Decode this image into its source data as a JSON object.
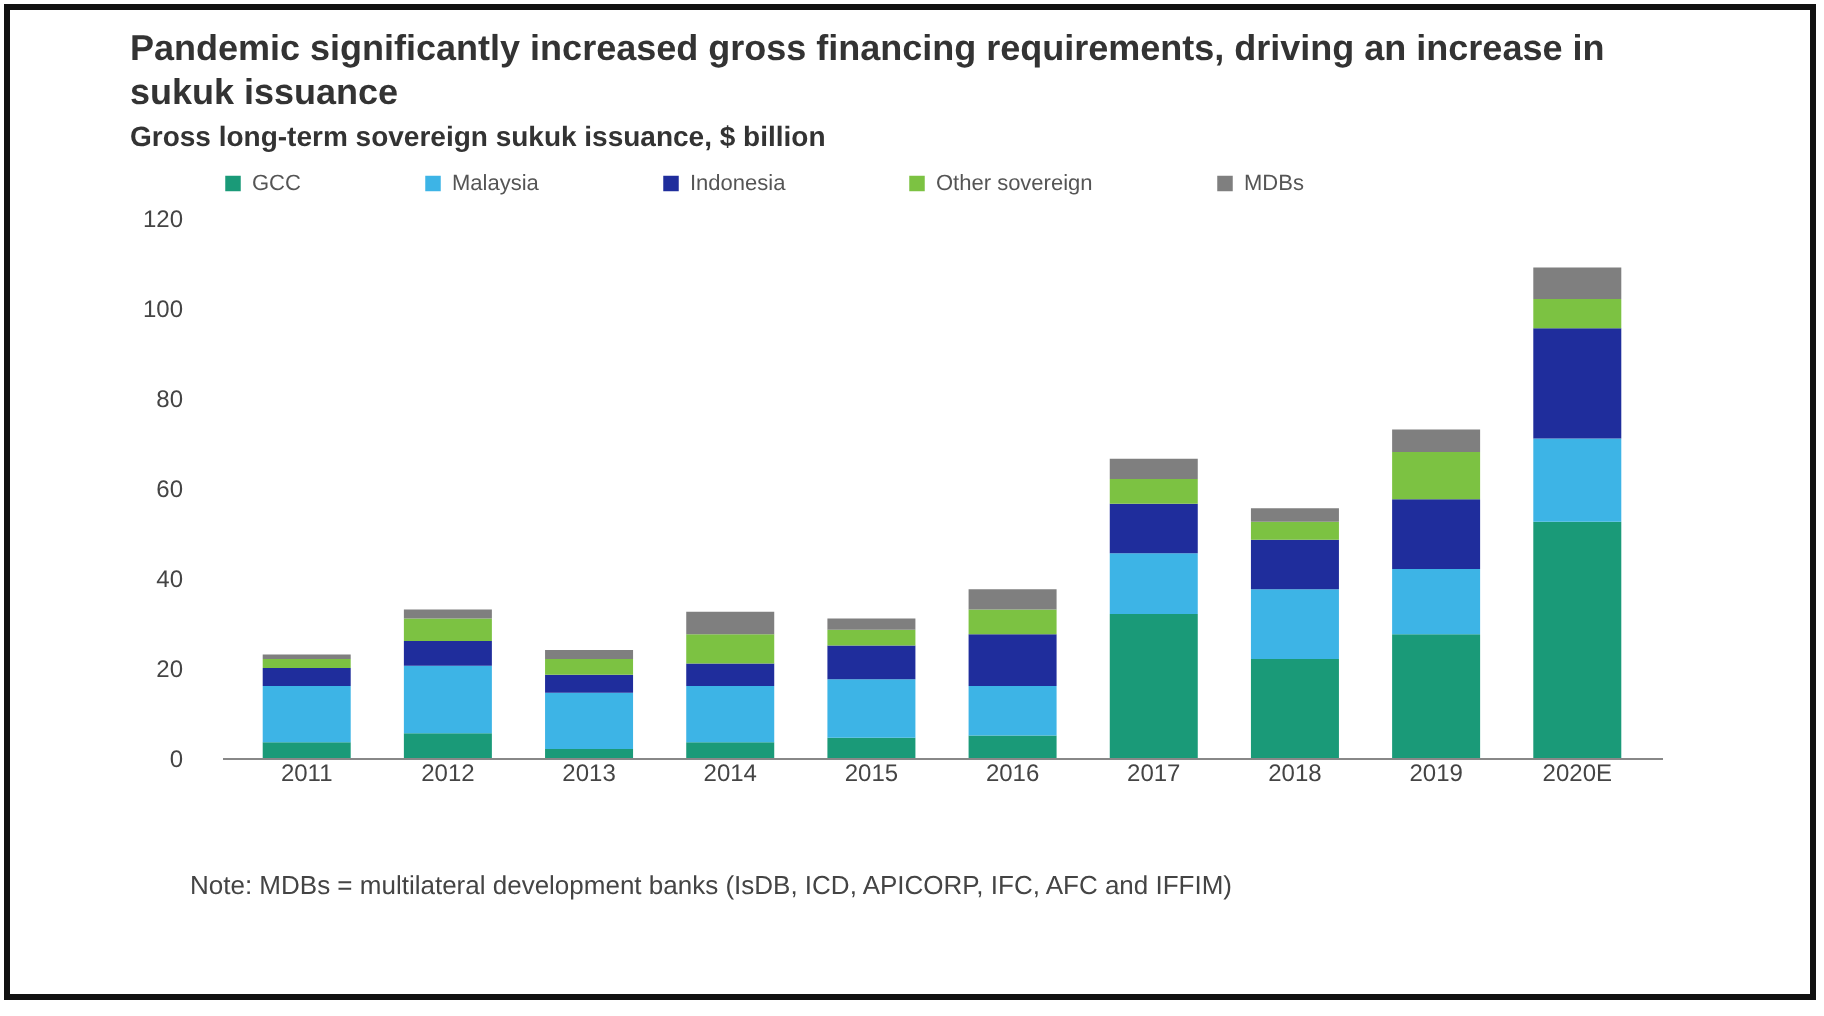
{
  "chart_data": {
    "type": "bar",
    "title": "Pandemic significantly increased gross financing requirements, driving an increase in sukuk issuance",
    "subtitle": "Gross long-term sovereign sukuk issuance, $ billion",
    "categories": [
      "2011",
      "2012",
      "2013",
      "2014",
      "2015",
      "2016",
      "2017",
      "2018",
      "2019",
      "2020E"
    ],
    "series": [
      {
        "name": "GCC",
        "color": "#1a9a78",
        "values": [
          3.5,
          5.5,
          2,
          3.5,
          4.5,
          5,
          32,
          22,
          27.5,
          52.5
        ]
      },
      {
        "name": "Malaysia",
        "color": "#3db4e6",
        "values": [
          12.5,
          15,
          12.5,
          12.5,
          13,
          11,
          13.5,
          15.5,
          14.5,
          18.5
        ]
      },
      {
        "name": "Indonesia",
        "color": "#1f2d9c",
        "values": [
          4,
          5.5,
          4,
          5,
          7.5,
          11.5,
          11,
          11,
          15.5,
          24.5
        ]
      },
      {
        "name": "Other sovereign",
        "color": "#7cc242",
        "values": [
          2,
          5,
          3.5,
          6.5,
          3.5,
          5.5,
          5.5,
          4,
          10.5,
          6.5
        ]
      },
      {
        "name": "MDBs",
        "color": "#7f7f7f",
        "values": [
          1,
          2,
          2,
          5,
          2.5,
          4.5,
          4.5,
          3,
          5,
          7
        ]
      }
    ],
    "stacked": true,
    "ylim": [
      0,
      120
    ],
    "yticks": [
      0,
      20,
      40,
      60,
      80,
      100,
      120
    ],
    "grid": false,
    "legend": "top",
    "annotations": [
      "Note: MDBs = multilateral development banks (IsDB, ICD, APICORP, IFC, AFC and IFFIM)"
    ]
  }
}
